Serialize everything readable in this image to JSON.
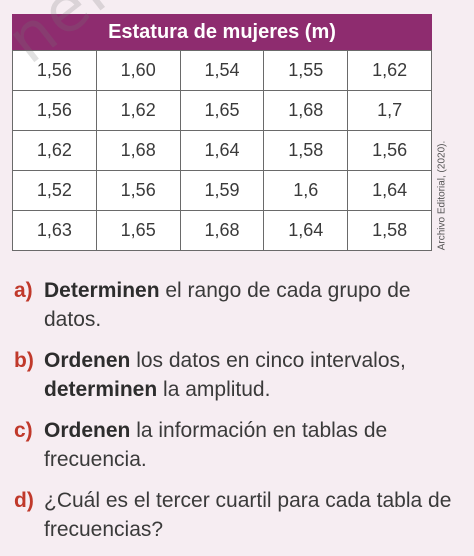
{
  "table": {
    "title": "Estatura de mujeres (m)",
    "rows": [
      [
        "1,56",
        "1,60",
        "1,54",
        "1,55",
        "1,62"
      ],
      [
        "1,56",
        "1,62",
        "1,65",
        "1,68",
        "1,7"
      ],
      [
        "1,62",
        "1,68",
        "1,64",
        "1,58",
        "1,56"
      ],
      [
        "1,52",
        "1,56",
        "1,59",
        "1,6",
        "1,64"
      ],
      [
        "1,63",
        "1,65",
        "1,68",
        "1,64",
        "1,58"
      ]
    ]
  },
  "credit": "Archivo Editorial, (2020).",
  "watermark": "nero",
  "questions": [
    {
      "letter": "a)",
      "bold": "Determinen",
      "rest": " el rango de cada grupo de datos."
    },
    {
      "letter": "b)",
      "bold": "Ordenen",
      "rest": " los datos en cinco intervalos, ",
      "bold2": "determinen",
      "rest2": " la amplitud."
    },
    {
      "letter": "c)",
      "bold": "Ordenen",
      "rest": " la información en tablas de frecuencia."
    },
    {
      "letter": "d)",
      "bold": "",
      "rest": "¿Cuál es el tercer cuartil para cada tabla de frecuencias?"
    }
  ],
  "colors": {
    "title_bg": "#8e2c6f",
    "letter": "#c0392b",
    "page_bg": "#f6edf2"
  }
}
